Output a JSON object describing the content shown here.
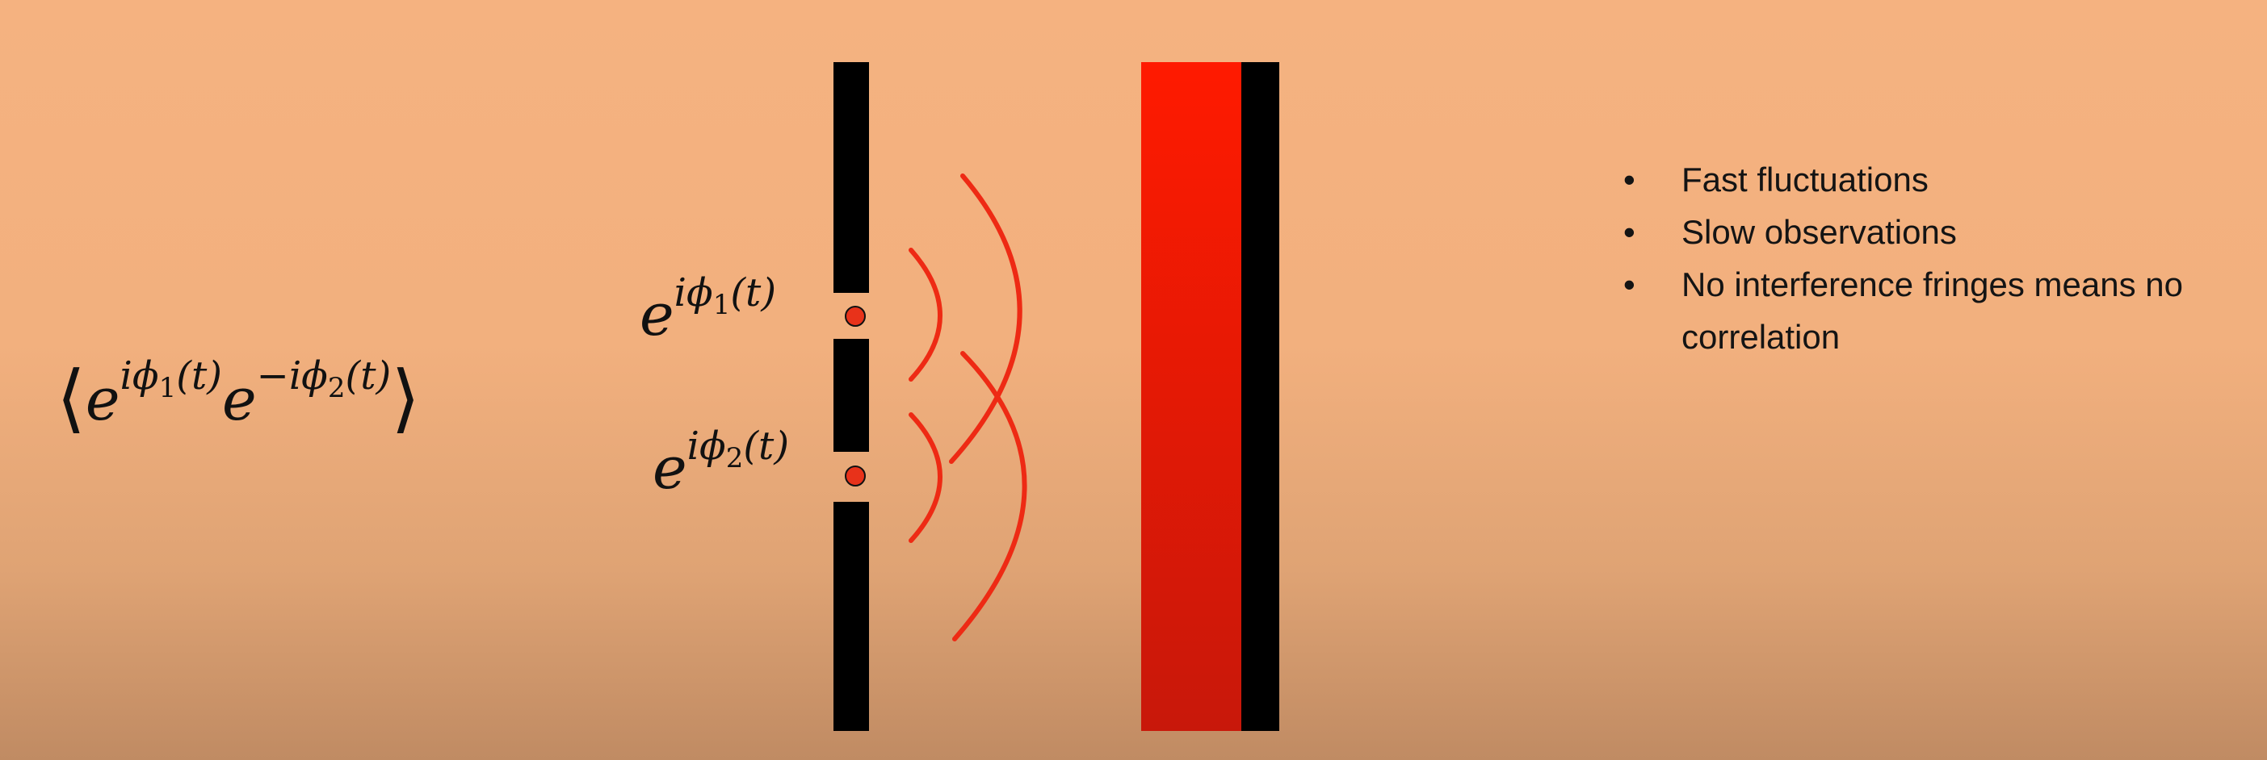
{
  "formula": {
    "correlation": {
      "open": "⟨",
      "e1": "e",
      "exp1_pre": "i",
      "exp1_phi": "ϕ",
      "exp1_sub": "1",
      "exp1_post": "(t)",
      "e2": "e",
      "exp2_pre": "−i",
      "exp2_phi": "ϕ",
      "exp2_sub": "2",
      "exp2_post": "(t)",
      "close": "⟩"
    },
    "phase1": {
      "base": "e",
      "pre": "i",
      "phi": "ϕ",
      "sub": "1",
      "post": "(t)"
    },
    "phase2": {
      "base": "e",
      "pre": "i",
      "phi": "ϕ",
      "sub": "2",
      "post": "(t)"
    }
  },
  "bullets": [
    "Fast fluctuations",
    "Slow observations",
    "No interference fringes means no correlation"
  ],
  "bullet_symbol": "•",
  "colors": {
    "barrier": "#000000",
    "wave": "#ee2a14",
    "source": "#e8321a",
    "screen_top": "#ff1a00",
    "screen_bottom": "#c8180a"
  }
}
